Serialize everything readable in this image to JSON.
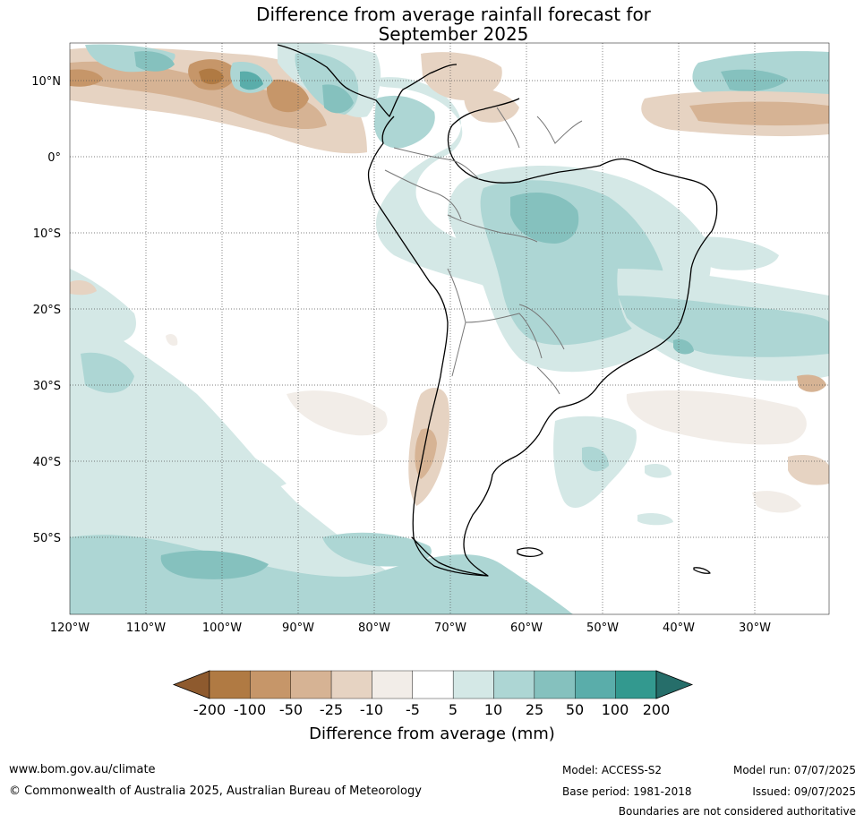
{
  "title": {
    "line1": "Difference from average rainfall forecast for",
    "line2": "September 2025"
  },
  "map": {
    "lat_labels": [
      "10°N",
      "0°",
      "10°S",
      "20°S",
      "30°S",
      "40°S",
      "50°S"
    ],
    "lon_labels": [
      "120°W",
      "110°W",
      "100°W",
      "90°W",
      "80°W",
      "70°W",
      "60°W",
      "50°W",
      "40°W",
      "30°W"
    ],
    "extent": {
      "lon": [
        -120,
        -20
      ],
      "lat": [
        -60,
        15
      ]
    }
  },
  "colorbar": {
    "labels": [
      "-200",
      "-100",
      "-50",
      "-25",
      "-10",
      "-5",
      "5",
      "10",
      "25",
      "50",
      "100",
      "200"
    ],
    "colors": [
      "#8e5a2e",
      "#b07a43",
      "#c69669",
      "#d6b394",
      "#e6d3c2",
      "#f2ede8",
      "#ffffff",
      "#d4e8e6",
      "#add6d4",
      "#85c1be",
      "#5aadaa",
      "#33998f",
      "#266e6a"
    ],
    "title": "Difference from average (mm)"
  },
  "footer": {
    "website": "www.bom.gov.au/climate",
    "copyright": "© Commonwealth of Australia 2025, Australian Bureau of Meteorology",
    "model": "Model: ACCESS-S2",
    "base_period": "Base period: 1981-2018",
    "model_run": "Model run: 07/07/2025",
    "issued": "Issued: 09/07/2025",
    "disclaimer": "Boundaries are not considered authoritative"
  }
}
